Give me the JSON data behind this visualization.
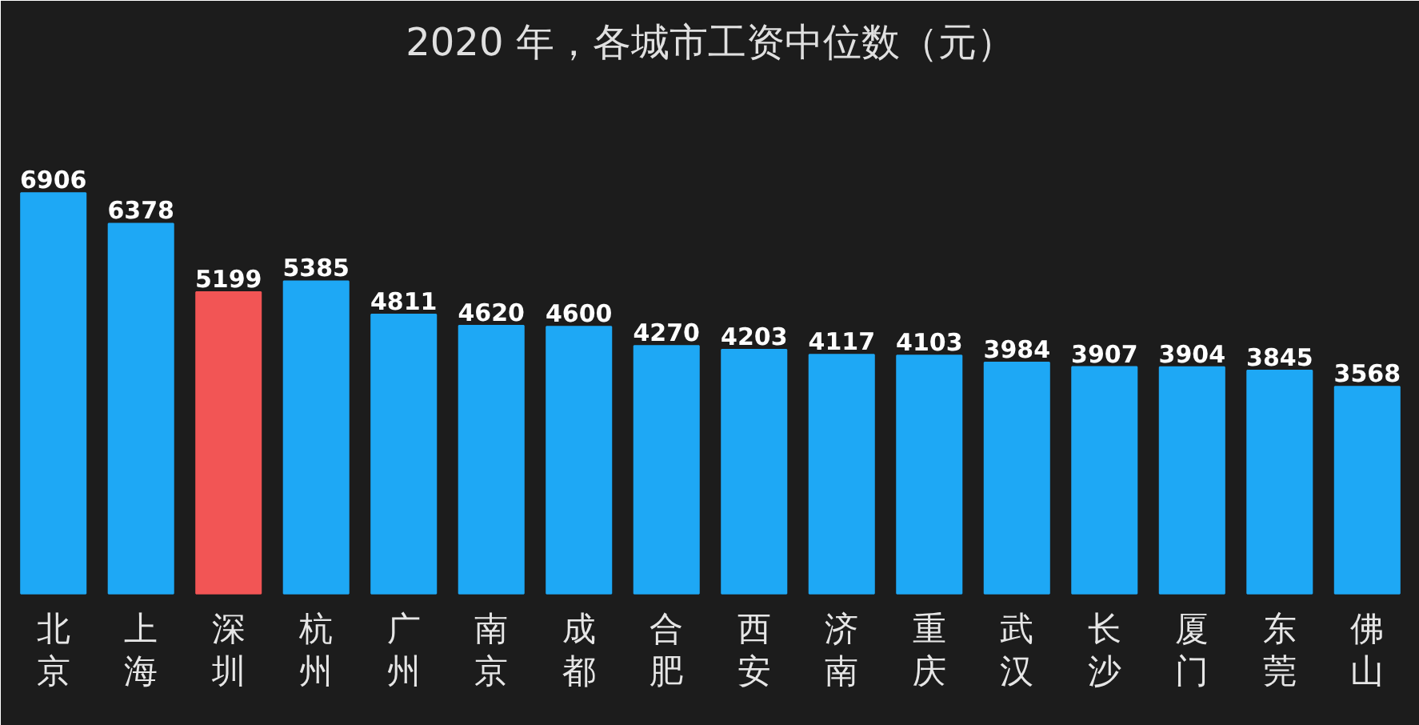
{
  "chart_data": {
    "type": "bar",
    "title": "2020 年，各城市工资中位数（元）",
    "categories": [
      "北京",
      "上海",
      "深圳",
      "杭州",
      "广州",
      "南京",
      "成都",
      "合肥",
      "西安",
      "济南",
      "重庆",
      "武汉",
      "长沙",
      "厦门",
      "东莞",
      "佛山"
    ],
    "values": [
      6906,
      6378,
      5199,
      5385,
      4811,
      4620,
      4600,
      4270,
      4203,
      4117,
      4103,
      3984,
      3907,
      3904,
      3845,
      3568
    ],
    "colors": [
      "#1ea8f5",
      "#1ea8f5",
      "#f25555",
      "#1ea8f5",
      "#1ea8f5",
      "#1ea8f5",
      "#1ea8f5",
      "#1ea8f5",
      "#1ea8f5",
      "#1ea8f5",
      "#1ea8f5",
      "#1ea8f5",
      "#1ea8f5",
      "#1ea8f5",
      "#1ea8f5",
      "#1ea8f5"
    ],
    "data_labels": true
  }
}
